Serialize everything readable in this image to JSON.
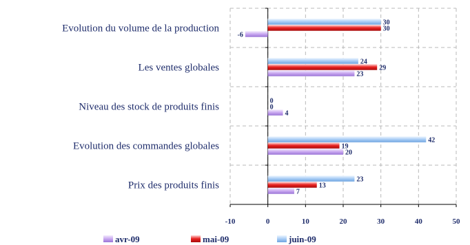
{
  "chart_data": {
    "type": "bar",
    "orientation": "horizontal",
    "categories": [
      "Evolution du volume de la production",
      "Les ventes globales",
      "Niveau des stock de produits finis",
      "Evolution des commandes globales",
      "Prix des produits finis"
    ],
    "series": [
      {
        "name": "avr-09",
        "values": [
          -6,
          23,
          4,
          20,
          7
        ],
        "color": "#c9a8f0"
      },
      {
        "name": "mai-09",
        "values": [
          30,
          29,
          0,
          19,
          13
        ],
        "color": "#e8211f"
      },
      {
        "name": "juin-09",
        "values": [
          30,
          24,
          0,
          42,
          23
        ],
        "color": "#a9cdf5"
      }
    ],
    "xlim": [
      -10,
      50
    ],
    "xticks": [
      -10,
      0,
      10,
      20,
      30,
      40,
      50
    ],
    "grid": true,
    "legend_position": "bottom",
    "title": "",
    "xlabel": "",
    "ylabel": ""
  }
}
